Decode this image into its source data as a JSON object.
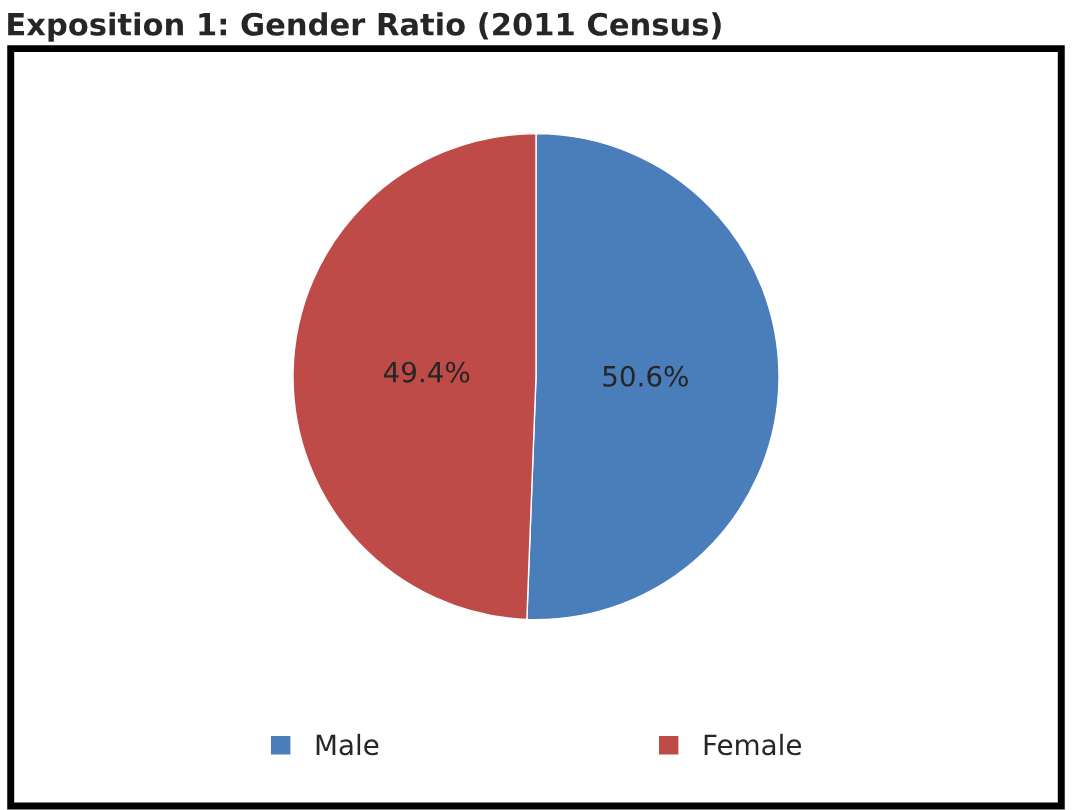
{
  "chart_data": {
    "type": "pie",
    "title": "Exposition 1: Gender Ratio (2011 Census)",
    "categories": [
      "Male",
      "Female"
    ],
    "values": [
      50.6,
      49.4
    ],
    "value_labels": [
      "50.6%",
      "49.4%"
    ],
    "colors": [
      "#4a7ebb",
      "#be4b48"
    ],
    "legend": "bottom"
  }
}
